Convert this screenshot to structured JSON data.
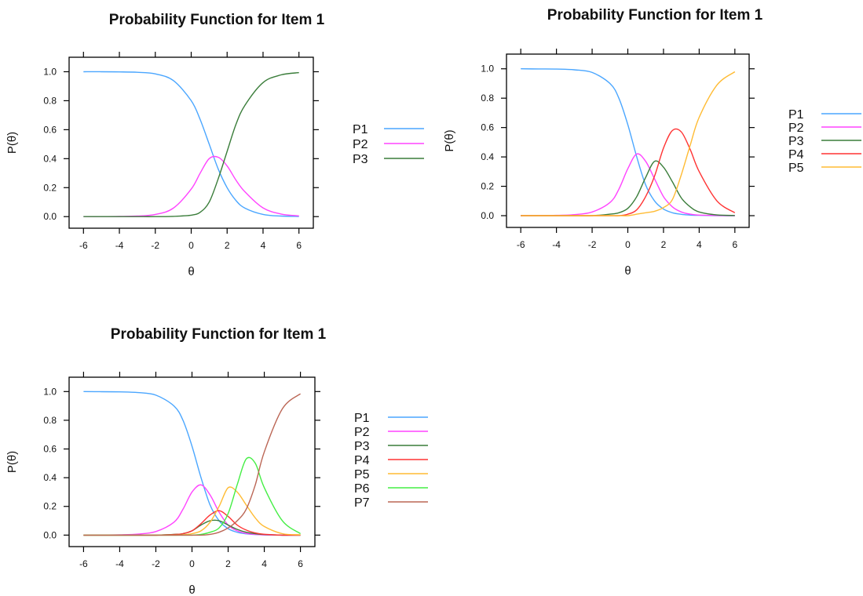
{
  "chart_data": [
    {
      "type": "line",
      "title": "Probability Function for Item 1",
      "xlabel": "θ",
      "ylabel": "P(θ)",
      "xlim": [
        -6.8,
        6.8
      ],
      "ylim": [
        -0.08,
        1.1
      ],
      "xticks": [
        -6,
        -4,
        -2,
        0,
        2,
        4,
        6
      ],
      "xtick_labels": [
        "-6",
        "-4",
        "-2",
        "0",
        "2",
        "4",
        "6"
      ],
      "yticks": [
        0.0,
        0.2,
        0.4,
        0.6,
        0.8,
        1.0
      ],
      "ytick_labels": [
        "0.0",
        "0.2",
        "0.4",
        "0.6",
        "0.8",
        "1.0"
      ],
      "legend_position": "right",
      "x": [
        -6,
        -5,
        -4,
        -3,
        -2,
        -1,
        0,
        0.5,
        1,
        1.5,
        2,
        2.5,
        3,
        4,
        5,
        6
      ],
      "series": [
        {
          "name": "P1",
          "color": "#4aa6ff",
          "values": [
            1.0,
            1.0,
            0.999,
            0.996,
            0.985,
            0.94,
            0.8,
            0.67,
            0.5,
            0.33,
            0.2,
            0.11,
            0.058,
            0.015,
            0.004,
            0.001
          ]
        },
        {
          "name": "P2",
          "color": "#ff44ff",
          "values": [
            0.0,
            0.0,
            0.001,
            0.004,
            0.015,
            0.058,
            0.19,
            0.3,
            0.4,
            0.41,
            0.35,
            0.25,
            0.17,
            0.06,
            0.018,
            0.005
          ]
        },
        {
          "name": "P3",
          "color": "#3a7d3a",
          "values": [
            0.0,
            0.0,
            0.0,
            0.0,
            0.0,
            0.002,
            0.01,
            0.03,
            0.1,
            0.26,
            0.45,
            0.64,
            0.77,
            0.925,
            0.978,
            0.994
          ]
        }
      ]
    },
    {
      "type": "line",
      "title": "Probability Function for Item 1",
      "xlabel": "θ",
      "ylabel": "P(θ)",
      "xlim": [
        -6.8,
        6.8
      ],
      "ylim": [
        -0.08,
        1.1
      ],
      "xticks": [
        -6,
        -4,
        -2,
        0,
        2,
        4,
        6
      ],
      "xtick_labels": [
        "-6",
        "-4",
        "-2",
        "0",
        "2",
        "4",
        "6"
      ],
      "yticks": [
        0.0,
        0.2,
        0.4,
        0.6,
        0.8,
        1.0
      ],
      "ytick_labels": [
        "0.0",
        "0.2",
        "0.4",
        "0.6",
        "0.8",
        "1.0"
      ],
      "legend_position": "right",
      "x": [
        -6,
        -5,
        -4,
        -3,
        -2,
        -1,
        -0.5,
        0,
        0.5,
        1,
        1.5,
        2,
        2.5,
        3,
        3.5,
        4,
        5,
        6
      ],
      "series": [
        {
          "name": "P1",
          "color": "#4aa6ff",
          "values": [
            1.0,
            0.999,
            0.998,
            0.993,
            0.975,
            0.9,
            0.8,
            0.62,
            0.4,
            0.21,
            0.1,
            0.045,
            0.02,
            0.009,
            0.004,
            0.002,
            0.0,
            0.0
          ]
        },
        {
          "name": "P2",
          "color": "#ff44ff",
          "values": [
            0.0,
            0.001,
            0.002,
            0.007,
            0.025,
            0.09,
            0.18,
            0.32,
            0.42,
            0.37,
            0.25,
            0.13,
            0.06,
            0.025,
            0.01,
            0.004,
            0.001,
            0.0
          ]
        },
        {
          "name": "P3",
          "color": "#3a7d3a",
          "values": [
            0.0,
            0.0,
            0.0,
            0.0,
            0.0,
            0.01,
            0.02,
            0.05,
            0.13,
            0.26,
            0.37,
            0.33,
            0.23,
            0.12,
            0.06,
            0.025,
            0.005,
            0.001
          ]
        },
        {
          "name": "P4",
          "color": "#ff3333",
          "values": [
            0.0,
            0.0,
            0.0,
            0.0,
            0.0,
            0.0,
            0.0,
            0.01,
            0.04,
            0.13,
            0.27,
            0.46,
            0.58,
            0.57,
            0.45,
            0.3,
            0.1,
            0.02
          ]
        },
        {
          "name": "P5",
          "color": "#ffbb33",
          "values": [
            0.0,
            0.0,
            0.0,
            0.0,
            0.0,
            0.0,
            0.0,
            0.0,
            0.01,
            0.02,
            0.03,
            0.055,
            0.11,
            0.28,
            0.48,
            0.67,
            0.89,
            0.98
          ]
        }
      ]
    },
    {
      "type": "line",
      "title": "Probability Function for Item 1",
      "xlabel": "θ",
      "ylabel": "P(θ)",
      "xlim": [
        -6.8,
        6.8
      ],
      "ylim": [
        -0.08,
        1.1
      ],
      "xticks": [
        -6,
        -4,
        -2,
        0,
        2,
        4,
        6
      ],
      "xtick_labels": [
        "-6",
        "-4",
        "-2",
        "0",
        "2",
        "4",
        "6"
      ],
      "yticks": [
        0.0,
        0.2,
        0.4,
        0.6,
        0.8,
        1.0
      ],
      "ytick_labels": [
        "0.0",
        "0.2",
        "0.4",
        "0.6",
        "0.8",
        "1.0"
      ],
      "legend_position": "right",
      "x": [
        -6,
        -5,
        -4,
        -3,
        -2,
        -1,
        -0.5,
        0,
        0.5,
        1,
        1.5,
        2,
        2.5,
        3,
        3.5,
        4,
        5,
        6
      ],
      "series": [
        {
          "name": "P1",
          "color": "#4aa6ff",
          "values": [
            1.0,
            0.999,
            0.998,
            0.993,
            0.975,
            0.9,
            0.8,
            0.62,
            0.4,
            0.21,
            0.1,
            0.045,
            0.02,
            0.009,
            0.004,
            0.002,
            0.0,
            0.0
          ]
        },
        {
          "name": "P2",
          "color": "#ff44ff",
          "values": [
            0.0,
            0.001,
            0.002,
            0.007,
            0.025,
            0.09,
            0.18,
            0.3,
            0.35,
            0.28,
            0.16,
            0.07,
            0.03,
            0.012,
            0.005,
            0.002,
            0.0,
            0.0
          ]
        },
        {
          "name": "P3",
          "color": "#3a7d3a",
          "values": [
            0.0,
            0.0,
            0.0,
            0.0,
            0.0,
            0.005,
            0.01,
            0.03,
            0.07,
            0.1,
            0.1,
            0.07,
            0.04,
            0.02,
            0.01,
            0.004,
            0.0,
            0.0
          ]
        },
        {
          "name": "P4",
          "color": "#ff3333",
          "values": [
            0.0,
            0.0,
            0.0,
            0.0,
            0.0,
            0.004,
            0.01,
            0.03,
            0.08,
            0.14,
            0.17,
            0.13,
            0.07,
            0.035,
            0.015,
            0.006,
            0.0,
            0.0
          ]
        },
        {
          "name": "P5",
          "color": "#ffbb33",
          "values": [
            0.0,
            0.0,
            0.0,
            0.0,
            0.0,
            0.0,
            0.002,
            0.01,
            0.03,
            0.09,
            0.2,
            0.33,
            0.3,
            0.21,
            0.12,
            0.06,
            0.01,
            0.002
          ]
        },
        {
          "name": "P6",
          "color": "#44ee44",
          "values": [
            0.0,
            0.0,
            0.0,
            0.0,
            0.0,
            0.0,
            0.0,
            0.0,
            0.005,
            0.02,
            0.05,
            0.15,
            0.35,
            0.53,
            0.5,
            0.33,
            0.1,
            0.01
          ]
        },
        {
          "name": "P7",
          "color": "#bb6655",
          "values": [
            0.0,
            0.0,
            0.0,
            0.0,
            0.0,
            0.0,
            0.0,
            0.0,
            0.0,
            0.005,
            0.02,
            0.05,
            0.1,
            0.18,
            0.35,
            0.58,
            0.88,
            0.985
          ]
        }
      ]
    }
  ]
}
